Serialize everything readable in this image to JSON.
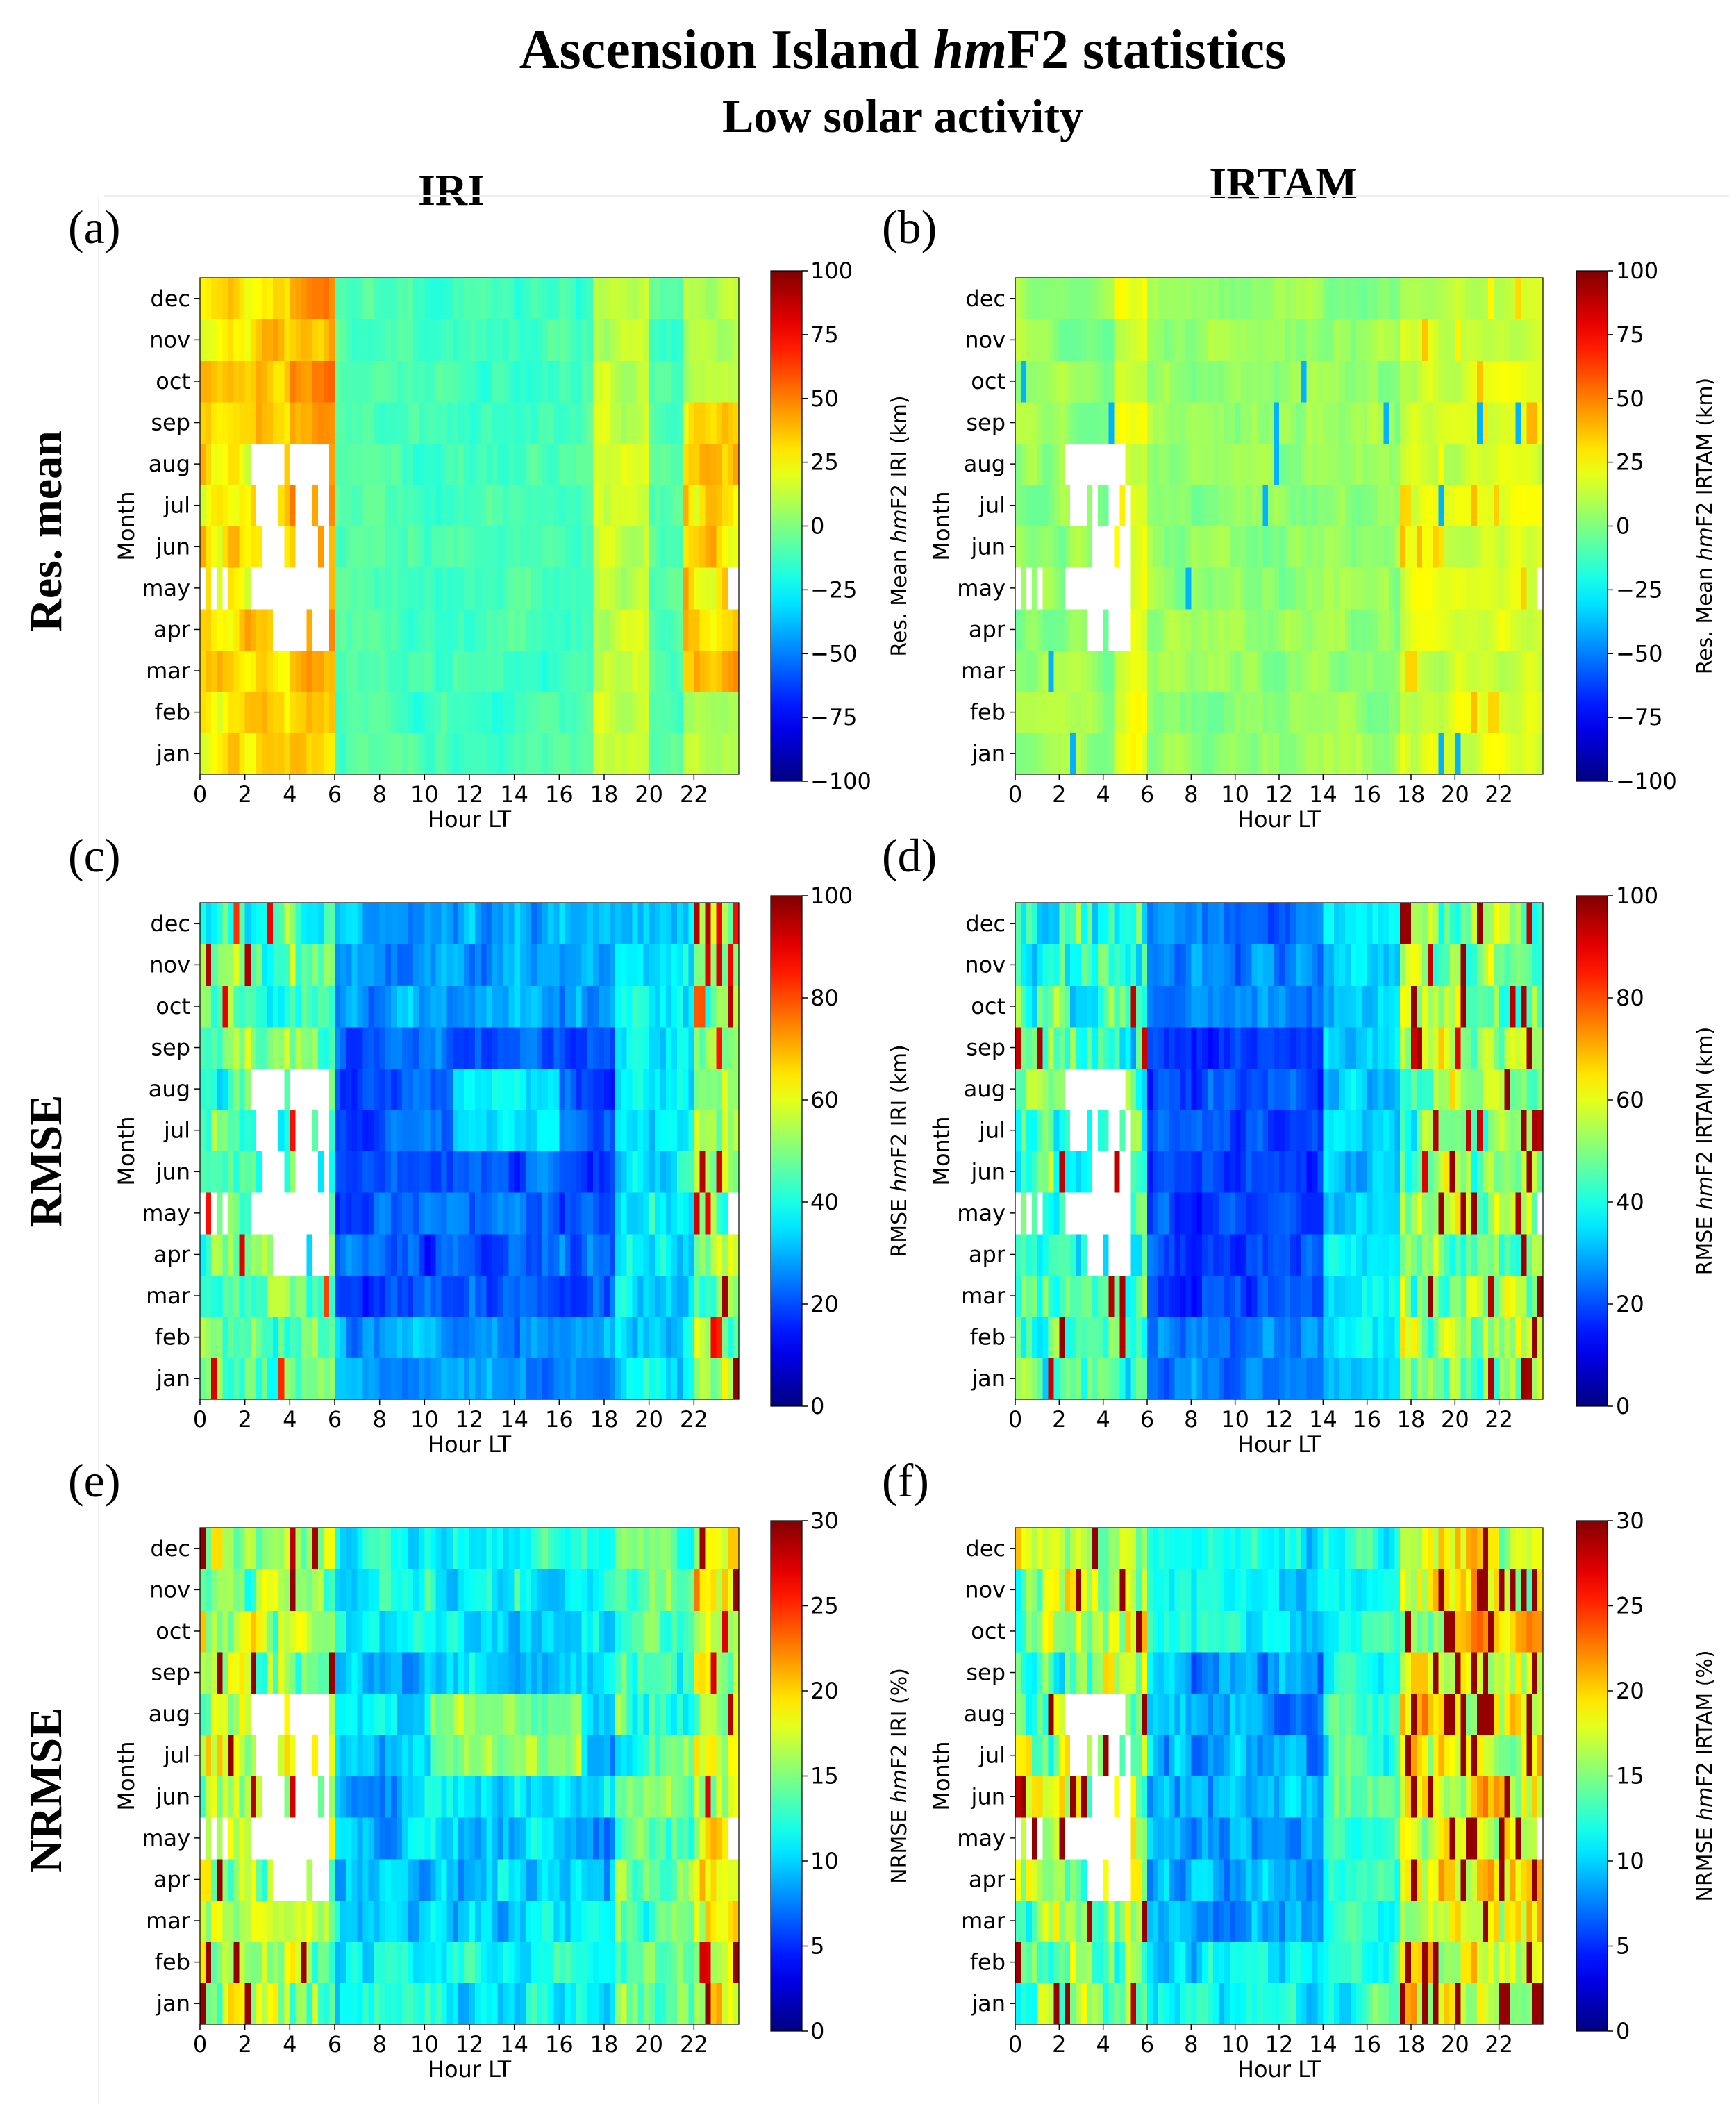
{
  "figure": {
    "title_part1": "Ascension Island ",
    "title_italic": "hm",
    "title_part2": "F2 statistics",
    "subtitle": "Low solar activity",
    "col_iri": "IRI",
    "col_irtam": "IRTAM",
    "row_mean": "Res. mean",
    "row_rmse": "RMSE",
    "row_nrmse": "NRMSE"
  },
  "chart_data": [
    {
      "type": "heatmap",
      "panel": "(a)",
      "model": "IRI",
      "metric": "mean",
      "colorbar_label": "Res. Mean hmF2 IRI (km)",
      "cb_pre": "Res. Mean ",
      "cb_post": "F2 IRI (km)",
      "vmin": -100,
      "vmax": 100,
      "cb_ticks": [
        "100",
        "75",
        "50",
        "25",
        "0",
        "−25",
        "−50",
        "−75",
        "−100"
      ],
      "xlabel": "Hour LT",
      "ylabel": "Month"
    },
    {
      "type": "heatmap",
      "panel": "(b)",
      "model": "IRTAM",
      "metric": "mean",
      "colorbar_label": "Res. Mean hmF2 IRTAM (km)",
      "cb_pre": "Res. Mean ",
      "cb_post": "F2 IRTAM (km)",
      "vmin": -100,
      "vmax": 100,
      "cb_ticks": [
        "100",
        "75",
        "50",
        "25",
        "0",
        "−25",
        "−50",
        "−75",
        "−100"
      ],
      "xlabel": "Hour LT",
      "ylabel": "Month"
    },
    {
      "type": "heatmap",
      "panel": "(c)",
      "model": "IRI",
      "metric": "rmse",
      "colorbar_label": "RMSE hmF2 IRI (km)",
      "cb_pre": "RMSE ",
      "cb_post": "F2 IRI (km)",
      "vmin": 0,
      "vmax": 100,
      "cb_ticks": [
        "100",
        "80",
        "60",
        "40",
        "20",
        "0"
      ],
      "xlabel": "Hour LT",
      "ylabel": "Month"
    },
    {
      "type": "heatmap",
      "panel": "(d)",
      "model": "IRTAM",
      "metric": "rmse",
      "colorbar_label": "RMSE hmF2 IRTAM (km)",
      "cb_pre": "RMSE ",
      "cb_post": "F2 IRTAM (km)",
      "vmin": 0,
      "vmax": 100,
      "cb_ticks": [
        "100",
        "80",
        "60",
        "40",
        "20",
        "0"
      ],
      "xlabel": "Hour LT",
      "ylabel": "Month"
    },
    {
      "type": "heatmap",
      "panel": "(e)",
      "model": "IRI",
      "metric": "nrmse",
      "colorbar_label": "NRMSE hmF2 IRI (%)",
      "cb_pre": "NRMSE ",
      "cb_post": "F2 IRI (%)",
      "vmin": 0,
      "vmax": 30,
      "cb_ticks": [
        "30",
        "25",
        "20",
        "15",
        "10",
        "5",
        "0"
      ],
      "xlabel": "Hour LT",
      "ylabel": "Month"
    },
    {
      "type": "heatmap",
      "panel": "(f)",
      "model": "IRTAM",
      "metric": "nrmse",
      "colorbar_label": "NRMSE hmF2 IRTAM (%)",
      "cb_pre": "NRMSE ",
      "cb_post": "F2 IRTAM (%)",
      "vmin": 0,
      "vmax": 30,
      "cb_ticks": [
        "30",
        "25",
        "20",
        "15",
        "10",
        "5",
        "0"
      ],
      "xlabel": "Hour LT",
      "ylabel": "Month"
    }
  ],
  "axes": {
    "months": [
      "jan",
      "feb",
      "mar",
      "apr",
      "may",
      "jun",
      "jul",
      "aug",
      "sep",
      "oct",
      "nov",
      "dec"
    ],
    "x_ticks": [
      "0",
      "2",
      "4",
      "6",
      "8",
      "10",
      "12",
      "14",
      "16",
      "18",
      "20",
      "22"
    ],
    "x_range": [
      0,
      24
    ],
    "time_step_hours": 0.25
  },
  "colors": {
    "background": "#ffffff",
    "missing": "#ffffff"
  }
}
